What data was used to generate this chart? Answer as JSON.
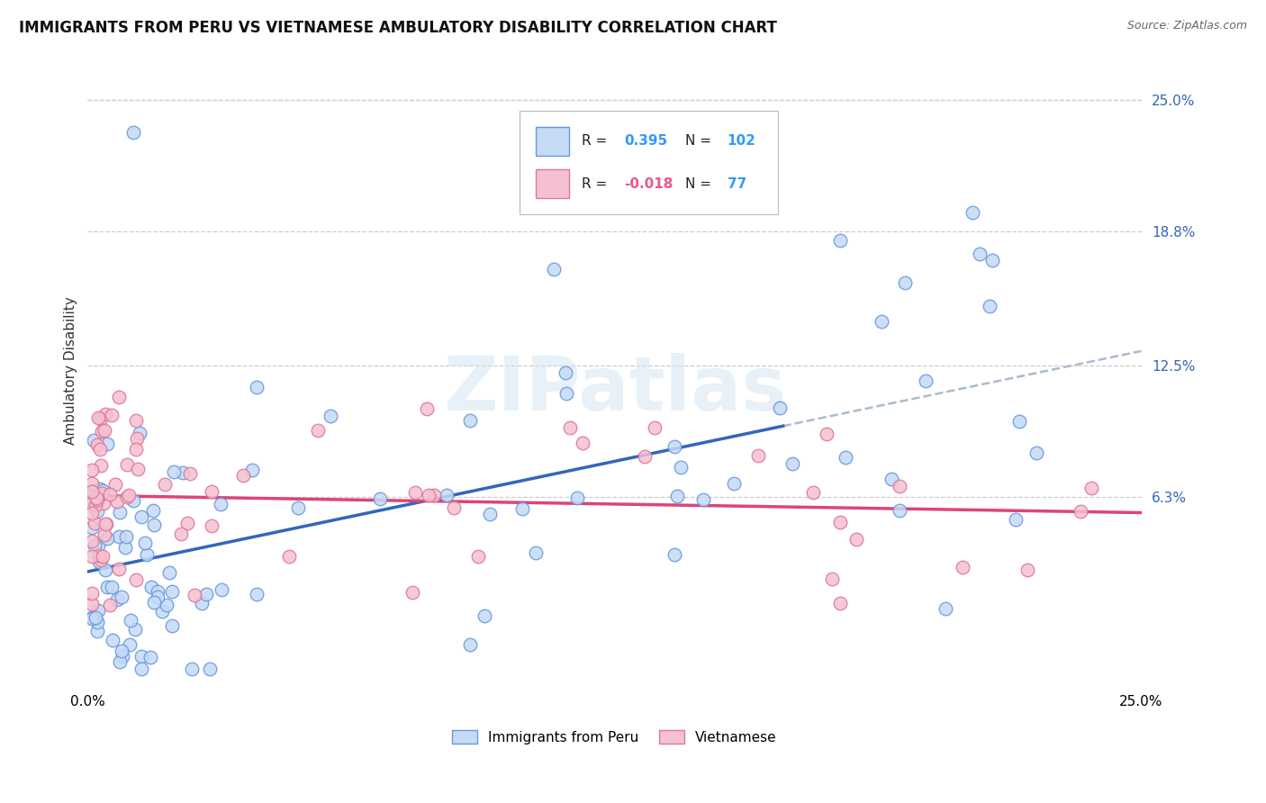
{
  "title": "IMMIGRANTS FROM PERU VS VIETNAMESE AMBULATORY DISABILITY CORRELATION CHART",
  "source": "Source: ZipAtlas.com",
  "ylabel": "Ambulatory Disability",
  "xlim": [
    0.0,
    0.25
  ],
  "ylim": [
    -0.025,
    0.27
  ],
  "yticks": [
    0.063,
    0.125,
    0.188,
    0.25
  ],
  "ytick_labels": [
    "6.3%",
    "12.5%",
    "18.8%",
    "25.0%"
  ],
  "r_peru": 0.395,
  "n_peru": 102,
  "r_viet": -0.018,
  "n_viet": 77,
  "color_peru_fill": "#c5daf5",
  "color_peru_edge": "#6699dd",
  "color_viet_fill": "#f5c0d0",
  "color_viet_edge": "#dd7799",
  "color_peru_line": "#3366bb",
  "color_viet_line": "#dd4477",
  "color_dash": "#aabbcc",
  "watermark": "ZIPatlas",
  "legend_box_color": "#aaaaaa",
  "r_peru_color": "#3399ff",
  "n_peru_color": "#3399ff",
  "r_viet_color": "#ee5588",
  "n_viet_color": "#3399ff"
}
